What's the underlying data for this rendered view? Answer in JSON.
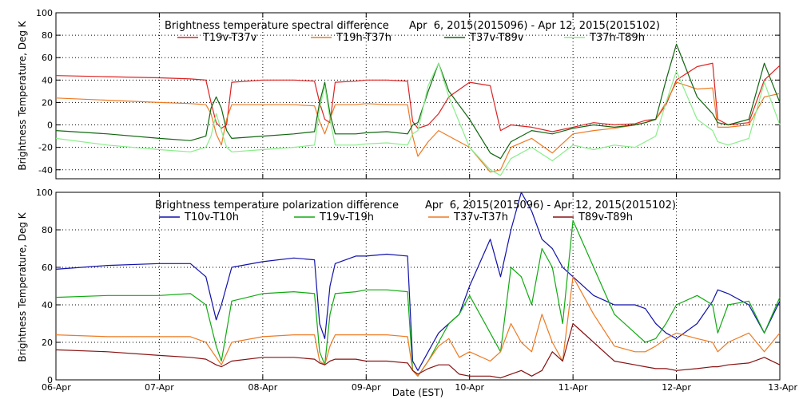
{
  "chart_data": [
    {
      "type": "line",
      "title": "Brightness temperature spectral difference",
      "date_range": "Apr  6, 2015(2015096) - Apr 12, 2015(2015102)",
      "ylabel": "Brightness Temperature, Deg K",
      "xlim": [
        0,
        7
      ],
      "ylim": [
        -48,
        100
      ],
      "yticks": [
        -40,
        -20,
        0,
        20,
        40,
        60,
        80,
        100
      ],
      "grid": true,
      "legend_position": "top",
      "series": [
        {
          "name": "T19v-T37v",
          "color": "#dd2222",
          "x": [
            0,
            0.5,
            1.0,
            1.3,
            1.45,
            1.5,
            1.55,
            1.6,
            1.65,
            1.7,
            2.0,
            2.3,
            2.5,
            2.55,
            2.6,
            2.65,
            2.7,
            2.9,
            3.0,
            3.2,
            3.4,
            3.45,
            3.5,
            3.6,
            3.7,
            3.8,
            4.0,
            4.2,
            4.3,
            4.4,
            4.6,
            4.8,
            5.0,
            5.2,
            5.4,
            5.6,
            5.7,
            5.8,
            5.9,
            6.0,
            6.2,
            6.35,
            6.4,
            6.5,
            6.7,
            6.85,
            7.0
          ],
          "y": [
            44,
            43,
            42,
            41,
            40,
            20,
            2,
            -3,
            0,
            38,
            40,
            40,
            39,
            20,
            5,
            2,
            38,
            39,
            40,
            40,
            39,
            3,
            -3,
            0,
            10,
            25,
            38,
            35,
            -5,
            0,
            -2,
            -6,
            -2,
            2,
            0,
            1,
            4,
            5,
            18,
            40,
            52,
            55,
            5,
            0,
            2,
            40,
            53
          ]
        },
        {
          "name": "T19h-T37h",
          "color": "#ee7a22",
          "x": [
            0,
            0.5,
            1.0,
            1.3,
            1.45,
            1.5,
            1.55,
            1.6,
            1.65,
            1.7,
            2.0,
            2.3,
            2.5,
            2.55,
            2.6,
            2.65,
            2.7,
            2.9,
            3.0,
            3.2,
            3.4,
            3.45,
            3.5,
            3.6,
            3.7,
            3.8,
            4.0,
            4.2,
            4.3,
            4.4,
            4.6,
            4.8,
            5.0,
            5.2,
            5.4,
            5.6,
            5.7,
            5.8,
            5.9,
            6.0,
            6.2,
            6.35,
            6.4,
            6.5,
            6.7,
            6.85,
            7.0
          ],
          "y": [
            24,
            22,
            20,
            19,
            18,
            10,
            -8,
            -18,
            5,
            18,
            18,
            18,
            17,
            3,
            -8,
            5,
            18,
            18,
            19,
            18,
            18,
            -10,
            -28,
            -15,
            -5,
            -10,
            -20,
            -42,
            -40,
            -20,
            -12,
            -25,
            -8,
            -5,
            -3,
            0,
            2,
            5,
            20,
            38,
            32,
            33,
            -2,
            -2,
            0,
            25,
            28
          ]
        },
        {
          "name": "T37v-T89v",
          "color": "#116611",
          "x": [
            0,
            0.5,
            1.0,
            1.3,
            1.45,
            1.5,
            1.55,
            1.6,
            1.65,
            1.7,
            2.0,
            2.3,
            2.5,
            2.55,
            2.6,
            2.65,
            2.7,
            2.9,
            3.0,
            3.2,
            3.4,
            3.45,
            3.5,
            3.6,
            3.7,
            3.8,
            4.0,
            4.2,
            4.3,
            4.4,
            4.6,
            4.8,
            5.0,
            5.2,
            5.4,
            5.6,
            5.7,
            5.8,
            5.9,
            6.0,
            6.2,
            6.35,
            6.4,
            6.5,
            6.7,
            6.85,
            7.0
          ],
          "y": [
            -5,
            -8,
            -12,
            -14,
            -10,
            15,
            25,
            15,
            -5,
            -12,
            -10,
            -8,
            -6,
            20,
            38,
            10,
            -8,
            -8,
            -7,
            -6,
            -8,
            0,
            2,
            30,
            55,
            30,
            5,
            -25,
            -30,
            -15,
            -5,
            -8,
            -3,
            0,
            -2,
            0,
            2,
            5,
            40,
            72,
            25,
            10,
            2,
            0,
            5,
            55,
            20
          ]
        },
        {
          "name": "T37h-T89h",
          "color": "#88ee88",
          "x": [
            0,
            0.5,
            1.0,
            1.3,
            1.45,
            1.5,
            1.55,
            1.6,
            1.65,
            1.7,
            2.0,
            2.3,
            2.5,
            2.55,
            2.6,
            2.65,
            2.7,
            2.9,
            3.0,
            3.2,
            3.4,
            3.45,
            3.5,
            3.6,
            3.7,
            3.8,
            4.0,
            4.2,
            4.3,
            4.4,
            4.6,
            4.8,
            5.0,
            5.2,
            5.4,
            5.6,
            5.7,
            5.8,
            5.9,
            6.0,
            6.2,
            6.35,
            6.4,
            6.5,
            6.7,
            6.85,
            7.0
          ],
          "y": [
            -12,
            -18,
            -22,
            -24,
            -20,
            -10,
            10,
            -5,
            -20,
            -24,
            -22,
            -20,
            -18,
            15,
            35,
            5,
            -18,
            -18,
            -17,
            -16,
            -18,
            -8,
            -5,
            35,
            55,
            25,
            -20,
            -40,
            -45,
            -30,
            -20,
            -32,
            -18,
            -22,
            -18,
            -20,
            -15,
            -10,
            20,
            48,
            5,
            -5,
            -15,
            -18,
            -12,
            38,
            0
          ]
        }
      ]
    },
    {
      "type": "line",
      "title": "Brightness temperature polarization difference",
      "date_range": "Apr  6, 2015(2015096) - Apr 12, 2015(2015102)",
      "ylabel": "Brightness Temperature, Deg K",
      "xlabel": "Date (EST)",
      "xlim": [
        0,
        7
      ],
      "ylim": [
        0,
        100
      ],
      "yticks": [
        0,
        20,
        40,
        60,
        80,
        100
      ],
      "categories": [
        "06-Apr",
        "07-Apr",
        "08-Apr",
        "09-Apr",
        "10-Apr",
        "11-Apr",
        "12-Apr",
        "13-Apr"
      ],
      "grid": true,
      "legend_position": "top",
      "series": [
        {
          "name": "T10v-T10h",
          "color": "#1111aa",
          "x": [
            0,
            0.5,
            1.0,
            1.3,
            1.45,
            1.55,
            1.6,
            1.7,
            2.0,
            2.3,
            2.5,
            2.55,
            2.6,
            2.65,
            2.7,
            2.9,
            3.0,
            3.2,
            3.4,
            3.45,
            3.5,
            3.6,
            3.7,
            3.8,
            3.9,
            4.0,
            4.2,
            4.3,
            4.4,
            4.5,
            4.6,
            4.7,
            4.8,
            4.9,
            5.0,
            5.2,
            5.4,
            5.6,
            5.7,
            5.8,
            5.9,
            6.0,
            6.2,
            6.35,
            6.4,
            6.5,
            6.7,
            6.85,
            7.0
          ],
          "y": [
            59,
            61,
            62,
            62,
            55,
            32,
            40,
            60,
            63,
            65,
            64,
            30,
            22,
            50,
            62,
            66,
            66,
            67,
            66,
            10,
            5,
            15,
            25,
            30,
            35,
            50,
            75,
            55,
            80,
            100,
            90,
            75,
            70,
            60,
            55,
            45,
            40,
            40,
            38,
            30,
            25,
            22,
            30,
            42,
            48,
            46,
            40,
            25,
            42
          ]
        },
        {
          "name": "T19v-T19h",
          "color": "#11aa11",
          "x": [
            0,
            0.5,
            1.0,
            1.3,
            1.45,
            1.55,
            1.6,
            1.7,
            2.0,
            2.3,
            2.5,
            2.55,
            2.6,
            2.65,
            2.7,
            2.9,
            3.0,
            3.2,
            3.4,
            3.45,
            3.5,
            3.6,
            3.7,
            3.8,
            3.9,
            4.0,
            4.2,
            4.3,
            4.4,
            4.5,
            4.6,
            4.7,
            4.8,
            4.9,
            5.0,
            5.2,
            5.4,
            5.6,
            5.7,
            5.8,
            5.9,
            6.0,
            6.2,
            6.35,
            6.4,
            6.5,
            6.7,
            6.85,
            7.0
          ],
          "y": [
            44,
            45,
            45,
            46,
            40,
            18,
            10,
            42,
            46,
            47,
            46,
            15,
            8,
            35,
            46,
            47,
            48,
            48,
            47,
            5,
            2,
            10,
            20,
            30,
            35,
            45,
            25,
            15,
            60,
            55,
            40,
            70,
            60,
            30,
            85,
            60,
            35,
            25,
            20,
            22,
            30,
            40,
            45,
            40,
            25,
            40,
            42,
            25,
            44
          ]
        },
        {
          "name": "T37v-T37h",
          "color": "#ee7a22",
          "x": [
            0,
            0.5,
            1.0,
            1.3,
            1.45,
            1.55,
            1.6,
            1.7,
            2.0,
            2.3,
            2.5,
            2.55,
            2.6,
            2.65,
            2.7,
            2.9,
            3.0,
            3.2,
            3.4,
            3.45,
            3.5,
            3.6,
            3.7,
            3.8,
            3.9,
            4.0,
            4.2,
            4.3,
            4.4,
            4.5,
            4.6,
            4.7,
            4.8,
            4.9,
            5.0,
            5.2,
            5.4,
            5.6,
            5.7,
            5.8,
            5.9,
            6.0,
            6.2,
            6.35,
            6.4,
            6.5,
            6.7,
            6.85,
            7.0
          ],
          "y": [
            24,
            23,
            23,
            23,
            20,
            12,
            8,
            20,
            23,
            24,
            24,
            10,
            8,
            18,
            24,
            24,
            24,
            24,
            23,
            5,
            2,
            10,
            18,
            22,
            12,
            15,
            10,
            15,
            30,
            20,
            15,
            35,
            20,
            10,
            55,
            35,
            18,
            15,
            15,
            18,
            22,
            25,
            22,
            20,
            15,
            20,
            25,
            15,
            25
          ]
        },
        {
          "name": "T89v-T89h",
          "color": "#881111",
          "x": [
            0,
            0.5,
            1.0,
            1.3,
            1.45,
            1.55,
            1.6,
            1.7,
            2.0,
            2.3,
            2.5,
            2.55,
            2.6,
            2.65,
            2.7,
            2.9,
            3.0,
            3.2,
            3.4,
            3.45,
            3.5,
            3.6,
            3.7,
            3.8,
            3.9,
            4.0,
            4.2,
            4.3,
            4.4,
            4.5,
            4.6,
            4.7,
            4.8,
            4.9,
            5.0,
            5.2,
            5.4,
            5.6,
            5.7,
            5.8,
            5.9,
            6.0,
            6.2,
            6.35,
            6.4,
            6.5,
            6.7,
            6.85,
            7.0
          ],
          "y": [
            16,
            15,
            13,
            12,
            11,
            8,
            7,
            10,
            12,
            12,
            11,
            9,
            8,
            10,
            11,
            11,
            10,
            10,
            9,
            5,
            3,
            6,
            8,
            8,
            3,
            2,
            2,
            1,
            3,
            5,
            2,
            5,
            15,
            10,
            30,
            20,
            10,
            8,
            7,
            6,
            6,
            5,
            6,
            7,
            7,
            8,
            9,
            12,
            8
          ]
        }
      ]
    }
  ],
  "xaxis": {
    "label": "Date (EST)",
    "ticks": [
      "06-Apr",
      "07-Apr",
      "08-Apr",
      "09-Apr",
      "10-Apr",
      "11-Apr",
      "12-Apr",
      "13-Apr"
    ]
  }
}
